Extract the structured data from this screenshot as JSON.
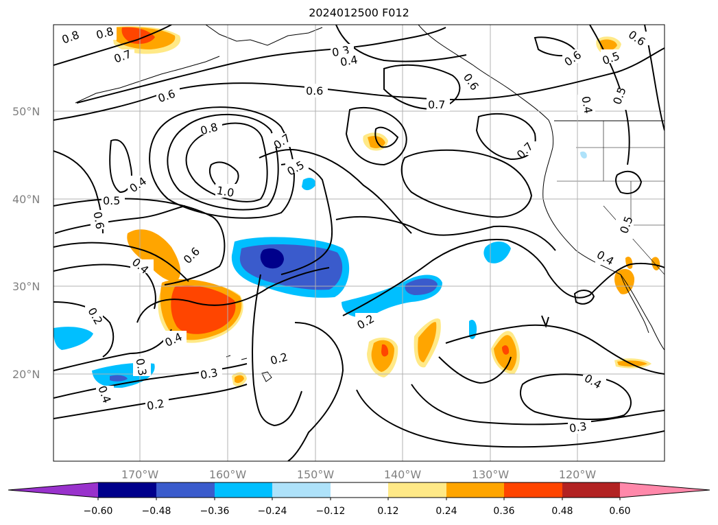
{
  "title": "2024012500 F012",
  "map": {
    "lat_labels": [
      "50°N",
      "40°N",
      "30°N",
      "20°N"
    ],
    "lon_labels": [
      "170°W",
      "160°W",
      "150°W",
      "140°W",
      "130°W",
      "120°W"
    ],
    "grid": true,
    "contour_color": "#000000",
    "contour_labels": [
      "0.8",
      "0.8",
      "0.7",
      "0.6",
      "0.6",
      "0.8",
      "1.0",
      "0.7",
      "0.5",
      "0.4",
      "0.5",
      "0.6",
      "0.4",
      "0.6",
      "0.3",
      "0.4",
      "0.6",
      "0.7",
      "0.7",
      "0.6",
      "0.5",
      "0.6",
      "0.4",
      "0.5",
      "0.5",
      "0.4",
      "0.2",
      "0.3",
      "0.4",
      "0.4",
      "0.3",
      "0.2",
      "0.2",
      "0.2",
      "0.4",
      "0.3"
    ]
  },
  "colorbar": {
    "ticks": [
      "−0.60",
      "−0.48",
      "−0.36",
      "−0.24",
      "−0.12",
      "0.12",
      "0.24",
      "0.36",
      "0.48",
      "0.60"
    ],
    "colors": [
      "#9932cc",
      "#00008b",
      "#3a5bcc",
      "#00bfff",
      "#aee2fa",
      "#ffffff",
      "#ffe987",
      "#ffa500",
      "#ff4500",
      "#b22222",
      "#ff88aa"
    ],
    "extend": "both"
  }
}
